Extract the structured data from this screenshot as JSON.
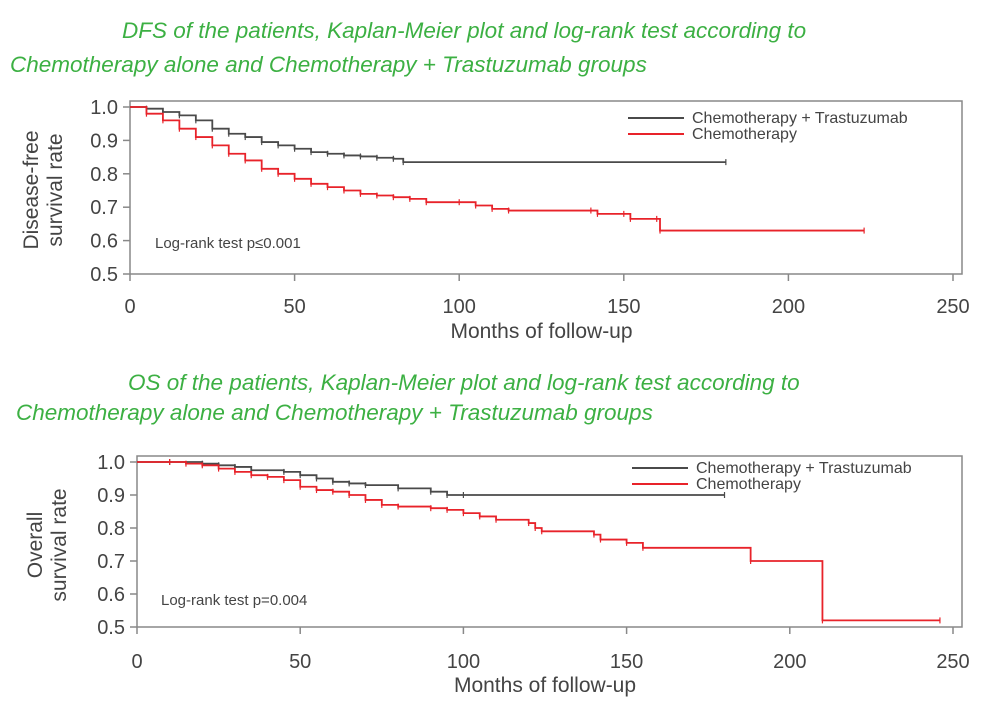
{
  "chart_data": [
    {
      "type": "line",
      "subtype": "kaplan-meier step",
      "title_line1": "DFS of the patients, Kaplan-Meier plot and log-rank test according to",
      "title_line2": "Chemotherapy alone and Chemotherapy + Trastuzumab groups",
      "xlabel": "Months of follow-up",
      "ylabel_line1": "Disease-free",
      "ylabel_line2": "survival rate",
      "xlim": [
        0,
        250
      ],
      "ylim": [
        0.5,
        1.0
      ],
      "xticks": [
        0,
        50,
        100,
        150,
        200,
        250
      ],
      "xtick_labels": [
        "0",
        "50",
        "100",
        "150",
        "200",
        "250"
      ],
      "yticks": [
        0.5,
        0.6,
        0.7,
        0.8,
        0.9,
        1.0
      ],
      "ytick_labels": [
        "0.5",
        "0.6",
        "0.7",
        "0.8",
        "0.9",
        "1.0"
      ],
      "annotation": "Log-rank test p≤0.001",
      "legend_position": "top-right",
      "series": [
        {
          "name": "Chemotherapy + Trastuzumab",
          "color": "#4a4a4a",
          "x": [
            0,
            5,
            10,
            15,
            20,
            25,
            30,
            35,
            40,
            45,
            50,
            55,
            60,
            65,
            70,
            75,
            80,
            83,
            181
          ],
          "y": [
            1.0,
            0.995,
            0.985,
            0.975,
            0.96,
            0.935,
            0.92,
            0.91,
            0.895,
            0.885,
            0.875,
            0.865,
            0.86,
            0.855,
            0.852,
            0.848,
            0.845,
            0.835,
            0.835
          ]
        },
        {
          "name": "Chemotherapy",
          "color": "#e8232a",
          "x": [
            0,
            5,
            10,
            15,
            20,
            25,
            30,
            35,
            40,
            45,
            50,
            55,
            60,
            65,
            70,
            75,
            80,
            85,
            90,
            100,
            105,
            110,
            115,
            140,
            142,
            150,
            152,
            160,
            161,
            223
          ],
          "y": [
            1.0,
            0.98,
            0.96,
            0.935,
            0.91,
            0.885,
            0.86,
            0.84,
            0.815,
            0.8,
            0.785,
            0.77,
            0.76,
            0.75,
            0.74,
            0.735,
            0.73,
            0.725,
            0.715,
            0.715,
            0.705,
            0.695,
            0.69,
            0.69,
            0.68,
            0.68,
            0.665,
            0.665,
            0.63,
            0.63
          ]
        }
      ]
    },
    {
      "type": "line",
      "subtype": "kaplan-meier step",
      "title_line1": "OS of the patients, Kaplan-Meier plot and log-rank test according to",
      "title_line2": "Chemotherapy alone and Chemotherapy + Trastuzumab groups",
      "xlabel": "Months of follow-up",
      "ylabel_line1": "Overall",
      "ylabel_line2": "survival rate",
      "xlim": [
        0,
        250
      ],
      "ylim": [
        0.5,
        1.0
      ],
      "xticks": [
        0,
        50,
        100,
        150,
        200,
        250
      ],
      "xtick_labels": [
        "0",
        "50",
        "100",
        "150",
        "200",
        "250"
      ],
      "yticks": [
        0.5,
        0.6,
        0.7,
        0.8,
        0.9,
        1.0
      ],
      "ytick_labels": [
        "0.5",
        "0.6",
        "0.7",
        "0.8",
        "0.9",
        "1.0"
      ],
      "annotation": "Log-rank test p=0.004",
      "legend_position": "top-right",
      "series": [
        {
          "name": "Chemotherapy + Trastuzumab",
          "color": "#4a4a4a",
          "x": [
            0,
            10,
            20,
            25,
            30,
            35,
            45,
            50,
            55,
            60,
            65,
            70,
            80,
            90,
            95,
            100,
            180
          ],
          "y": [
            1.0,
            1.0,
            0.995,
            0.99,
            0.985,
            0.975,
            0.97,
            0.96,
            0.95,
            0.94,
            0.935,
            0.93,
            0.92,
            0.91,
            0.9,
            0.9,
            0.9
          ]
        },
        {
          "name": "Chemotherapy",
          "color": "#e8232a",
          "x": [
            0,
            10,
            15,
            20,
            25,
            30,
            35,
            40,
            45,
            50,
            55,
            60,
            65,
            70,
            75,
            80,
            90,
            95,
            100,
            105,
            110,
            120,
            122,
            124,
            140,
            142,
            150,
            155,
            188,
            210,
            246
          ],
          "y": [
            1.0,
            1.0,
            0.995,
            0.99,
            0.98,
            0.97,
            0.96,
            0.955,
            0.945,
            0.925,
            0.915,
            0.91,
            0.9,
            0.885,
            0.87,
            0.865,
            0.86,
            0.855,
            0.845,
            0.835,
            0.825,
            0.815,
            0.8,
            0.79,
            0.78,
            0.765,
            0.755,
            0.74,
            0.7,
            0.52,
            0.52
          ]
        }
      ]
    }
  ]
}
